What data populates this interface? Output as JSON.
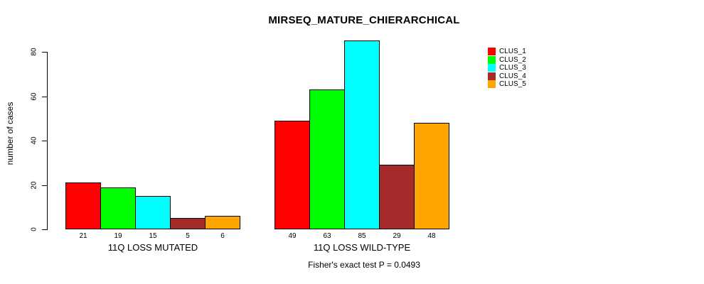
{
  "title": "MIRSEQ_MATURE_CHIERARCHICAL",
  "footer": "Fisher's exact test P = 0.0493",
  "chart_data": {
    "type": "bar",
    "title": "MIRSEQ_MATURE_CHIERARCHICAL",
    "xlabel": "",
    "ylabel": "number of cases",
    "ylim": [
      0,
      80
    ],
    "yticks": [
      0,
      20,
      40,
      60,
      80
    ],
    "grid": false,
    "bar_value_labels": true,
    "legend_position": "right-outside-top",
    "categories": [
      "11Q LOSS MUTATED",
      "11Q LOSS WILD-TYPE"
    ],
    "series": [
      {
        "name": "CLUS_1",
        "color": "#FF0000",
        "values": [
          21,
          49
        ]
      },
      {
        "name": "CLUS_2",
        "color": "#00FF00",
        "values": [
          19,
          63
        ]
      },
      {
        "name": "CLUS_3",
        "color": "#00FFFF",
        "values": [
          15,
          85
        ]
      },
      {
        "name": "CLUS_4",
        "color": "#A52A2A",
        "values": [
          5,
          29
        ]
      },
      {
        "name": "CLUS_5",
        "color": "#FFA500",
        "values": [
          6,
          48
        ]
      }
    ],
    "annotation": "Fisher's exact test P = 0.0493"
  }
}
